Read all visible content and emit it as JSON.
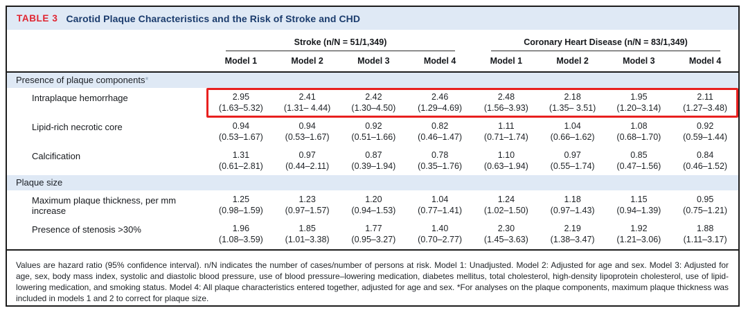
{
  "colors": {
    "accent_red": "#e02430",
    "highlight_box_red": "#e8201f",
    "title_navy": "#1b3c6d",
    "band_blue": "#dfe9f5",
    "border_dark": "#1c1c1c"
  },
  "title": {
    "tag": "TABLE 3",
    "text": "Carotid Plaque Characteristics and the Risk of Stroke and CHD"
  },
  "header": {
    "groups": [
      {
        "label": "Stroke (n/N = 51/1,349)"
      },
      {
        "label": "Coronary Heart Disease (n/N = 83/1,349)"
      }
    ],
    "models": [
      "Model 1",
      "Model 2",
      "Model 3",
      "Model 4",
      "Model 1",
      "Model 2",
      "Model 3",
      "Model 4"
    ]
  },
  "sections": [
    {
      "label": "Presence of plaque components",
      "marker": "*",
      "rows": [
        {
          "label": "Intraplaque hemorrhage",
          "highlighted": true,
          "cells": [
            {
              "hr": "2.95",
              "ci": "(1.63–5.32)"
            },
            {
              "hr": "2.41",
              "ci": "(1.31– 4.44)"
            },
            {
              "hr": "2.42",
              "ci": "(1.30–4.50)"
            },
            {
              "hr": "2.46",
              "ci": "(1.29–4.69)"
            },
            {
              "hr": "2.48",
              "ci": "(1.56–3.93)"
            },
            {
              "hr": "2.18",
              "ci": "(1.35– 3.51)"
            },
            {
              "hr": "1.95",
              "ci": "(1.20–3.14)"
            },
            {
              "hr": "2.11",
              "ci": "(1.27–3.48)"
            }
          ]
        },
        {
          "label": "Lipid-rich necrotic core",
          "highlighted": false,
          "cells": [
            {
              "hr": "0.94",
              "ci": "(0.53–1.67)"
            },
            {
              "hr": "0.94",
              "ci": "(0.53–1.67)"
            },
            {
              "hr": "0.92",
              "ci": "(0.51–1.66)"
            },
            {
              "hr": "0.82",
              "ci": "(0.46–1.47)"
            },
            {
              "hr": "1.11",
              "ci": "(0.71–1.74)"
            },
            {
              "hr": "1.04",
              "ci": "(0.66–1.62)"
            },
            {
              "hr": "1.08",
              "ci": "(0.68–1.70)"
            },
            {
              "hr": "0.92",
              "ci": "(0.59–1.44)"
            }
          ]
        },
        {
          "label": "Calcification",
          "highlighted": false,
          "cells": [
            {
              "hr": "1.31",
              "ci": "(0.61–2.81)"
            },
            {
              "hr": "0.97",
              "ci": "(0.44–2.11)"
            },
            {
              "hr": "0.87",
              "ci": "(0.39–1.94)"
            },
            {
              "hr": "0.78",
              "ci": "(0.35–1.76)"
            },
            {
              "hr": "1.10",
              "ci": "(0.63–1.94)"
            },
            {
              "hr": "0.97",
              "ci": "(0.55–1.74)"
            },
            {
              "hr": "0.85",
              "ci": "(0.47–1.56)"
            },
            {
              "hr": "0.84",
              "ci": "(0.46–1.52)"
            }
          ]
        }
      ]
    },
    {
      "label": "Plaque size",
      "marker": "",
      "rows": [
        {
          "label": "Maximum plaque thickness, per mm increase",
          "highlighted": false,
          "cells": [
            {
              "hr": "1.25",
              "ci": "(0.98–1.59)"
            },
            {
              "hr": "1.23",
              "ci": "(0.97–1.57)"
            },
            {
              "hr": "1.20",
              "ci": "(0.94–1.53)"
            },
            {
              "hr": "1.04",
              "ci": "(0.77–1.41)"
            },
            {
              "hr": "1.24",
              "ci": "(1.02–1.50)"
            },
            {
              "hr": "1.18",
              "ci": "(0.97–1.43)"
            },
            {
              "hr": "1.15",
              "ci": "(0.94–1.39)"
            },
            {
              "hr": "0.95",
              "ci": "(0.75–1.21)"
            }
          ]
        },
        {
          "label": "Presence of stenosis >30%",
          "highlighted": false,
          "cells": [
            {
              "hr": "1.96",
              "ci": "(1.08–3.59)"
            },
            {
              "hr": "1.85",
              "ci": "(1.01–3.38)"
            },
            {
              "hr": "1.77",
              "ci": "(0.95–3.27)"
            },
            {
              "hr": "1.40",
              "ci": "(0.70–2.77)"
            },
            {
              "hr": "2.30",
              "ci": "(1.45–3.63)"
            },
            {
              "hr": "2.19",
              "ci": "(1.38–3.47)"
            },
            {
              "hr": "1.92",
              "ci": "(1.21–3.06)"
            },
            {
              "hr": "1.88",
              "ci": "(1.11–3.17)"
            }
          ]
        }
      ]
    }
  ],
  "footnote": "Values are hazard ratio (95% confidence interval). n/N indicates the number of cases/number of persons at risk. Model 1: Unadjusted. Model 2: Adjusted for age and sex. Model 3: Adjusted for age, sex, body mass index, systolic and diastolic blood pressure, use of blood pressure–lowering medication, diabetes mellitus, total cholesterol, high-density lipoprotein cholesterol, use of lipid-lowering medication, and smoking status. Model 4: All plaque characteristics entered together, adjusted for age and sex. *For analyses on the plaque components, maximum plaque thickness was included in models 1 and 2 to correct for plaque size."
}
